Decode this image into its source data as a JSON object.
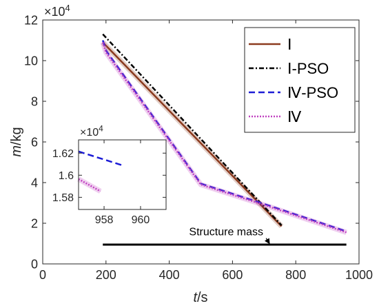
{
  "chart_data": [
    {
      "panel": "main",
      "type": "line",
      "xlabel": {
        "italic": "t",
        "rest": "/s"
      },
      "ylabel": {
        "italic": "m",
        "rest": "/kg"
      },
      "x_ticks": [
        "0",
        "200",
        "400",
        "600",
        "800",
        "1000"
      ],
      "x_tick_values": [
        0,
        200,
        400,
        600,
        800,
        1000
      ],
      "y_ticks": [
        "0",
        "2",
        "4",
        "6",
        "8",
        "10",
        "12"
      ],
      "y_tick_values": [
        0,
        2,
        4,
        6,
        8,
        10,
        12
      ],
      "y_exponent": {
        "base": "×10",
        "power": "4"
      },
      "xlim": [
        0,
        1000
      ],
      "ylim": [
        0,
        12
      ],
      "legend_placement": "top-right",
      "series": [
        {
          "name": "Ⅰ",
          "color": "#8b3a1e",
          "style": "solid",
          "x": [
            190,
            755
          ],
          "y": [
            10.9,
            1.85
          ]
        },
        {
          "name": "Ⅰ-PSO",
          "color": "#000000",
          "style": "dashdot",
          "x": [
            190,
            755
          ],
          "y": [
            11.3,
            1.9
          ]
        },
        {
          "name": "Ⅳ-PSO",
          "color": "#1c1cd6",
          "style": "dashed",
          "x": [
            190,
            200,
            500,
            700,
            960
          ],
          "y": [
            11.0,
            10.5,
            3.95,
            2.95,
            1.6
          ]
        },
        {
          "name": "Ⅳ",
          "color": "#c040c0",
          "style": "dotted",
          "x": [
            190,
            200,
            500,
            700,
            960
          ],
          "y": [
            10.9,
            10.4,
            3.9,
            2.9,
            1.55
          ]
        },
        {
          "name": "",
          "color": "#000000",
          "style": "solid",
          "x": [
            190,
            960
          ],
          "y": [
            0.95,
            0.95
          ]
        }
      ],
      "annotations": [
        {
          "text": "Structure mass",
          "x": 580,
          "y": 1.4,
          "arrow_to": [
            718,
            0.97
          ]
        }
      ]
    },
    {
      "panel": "inset",
      "type": "line",
      "x_ticks": [
        "958",
        "960"
      ],
      "x_tick_values": [
        958,
        960
      ],
      "y_ticks": [
        "1.58",
        "1.6",
        "1.62"
      ],
      "y_tick_values": [
        1.58,
        1.6,
        1.62
      ],
      "y_exponent": {
        "base": "×10",
        "power": "4"
      },
      "xlim": [
        956.6,
        961.4
      ],
      "ylim": [
        1.569,
        1.632
      ],
      "series": [
        {
          "name": "Ⅳ-PSO",
          "color": "#1c1cd6",
          "style": "dashed",
          "x": [
            956.6,
            959.0
          ],
          "y": [
            1.6215,
            1.609
          ]
        },
        {
          "name": "Ⅳ",
          "color": "#c040c0",
          "style": "dotted",
          "x": [
            956.6,
            957.8
          ],
          "y": [
            1.5965,
            1.5855
          ]
        }
      ]
    }
  ]
}
